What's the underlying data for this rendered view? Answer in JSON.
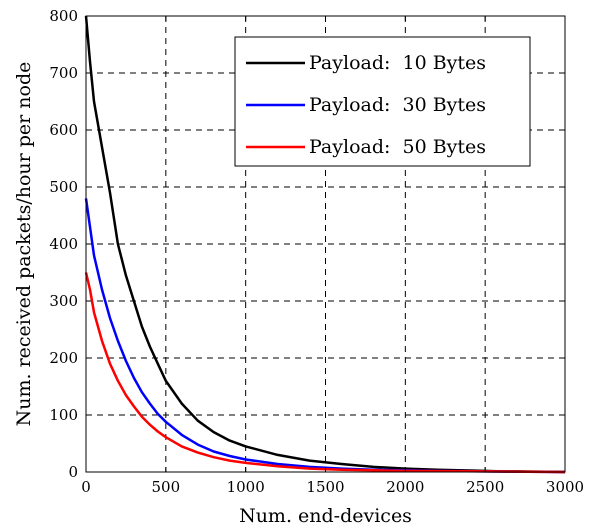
{
  "chart_data": {
    "type": "line",
    "title": "",
    "xlabel": "Num. end-devices",
    "ylabel": "Num. received packets/hour per node",
    "xlim": [
      0,
      3000
    ],
    "ylim": [
      0,
      800
    ],
    "xticks": [
      0,
      500,
      1000,
      1500,
      2000,
      2500,
      3000
    ],
    "yticks": [
      0,
      100,
      200,
      300,
      400,
      500,
      600,
      700,
      800
    ],
    "grid": true,
    "grid_style": "dashed",
    "legend_position": "top-right",
    "series": [
      {
        "name": "Payload:  10 Bytes",
        "color": "#000000",
        "x": [
          0,
          25,
          50,
          100,
          150,
          200,
          250,
          300,
          350,
          400,
          450,
          500,
          600,
          700,
          800,
          900,
          1000,
          1200,
          1400,
          1600,
          1800,
          2000,
          2200,
          2500,
          2600,
          2700,
          3000
        ],
        "y": [
          800,
          720,
          650,
          570,
          490,
          400,
          345,
          300,
          255,
          220,
          190,
          160,
          120,
          90,
          70,
          55,
          45,
          30,
          20,
          14,
          9,
          6,
          4,
          2,
          1,
          1,
          0
        ]
      },
      {
        "name": "Payload:  30 Bytes",
        "color": "#0000ff",
        "x": [
          0,
          25,
          50,
          100,
          150,
          200,
          250,
          300,
          350,
          400,
          450,
          500,
          600,
          700,
          800,
          900,
          1000,
          1200,
          1400,
          1600,
          1800,
          2000,
          2200,
          2500,
          3000
        ],
        "y": [
          480,
          430,
          380,
          320,
          270,
          230,
          195,
          165,
          140,
          120,
          102,
          88,
          65,
          48,
          36,
          28,
          22,
          14,
          9,
          6,
          4,
          3,
          2,
          1,
          0
        ]
      },
      {
        "name": "Payload:  50 Bytes",
        "color": "#ff0000",
        "x": [
          0,
          25,
          50,
          100,
          150,
          200,
          250,
          300,
          350,
          400,
          450,
          500,
          600,
          700,
          800,
          900,
          1000,
          1200,
          1400,
          1600,
          1800,
          2000,
          2500,
          3000
        ],
        "y": [
          350,
          320,
          280,
          230,
          190,
          160,
          135,
          115,
          97,
          83,
          71,
          61,
          45,
          34,
          26,
          20,
          16,
          10,
          6,
          4,
          3,
          2,
          1,
          0
        ]
      }
    ]
  }
}
